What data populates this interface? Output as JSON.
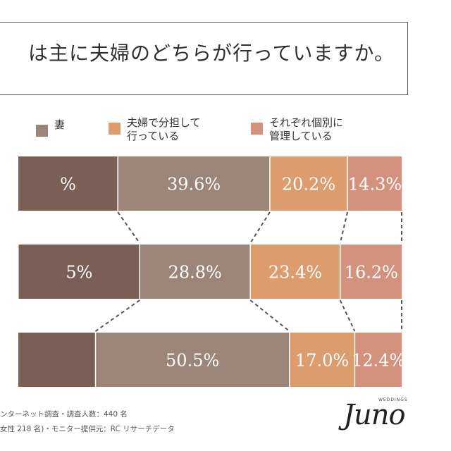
{
  "title": "は主に夫婦のどちらが行っていますか。",
  "legend": [
    {
      "label": "妻",
      "color": "#9c8576"
    },
    {
      "label": "夫婦で分担して\n行っている",
      "color": "#dd9c6e"
    },
    {
      "label": "それぞれ個別に\n管理している",
      "color": "#d3927e"
    }
  ],
  "chart_data": {
    "type": "bar",
    "orientation": "horizontal-stacked",
    "title": "は主に夫婦のどちらが行っていますか。",
    "series_colors": [
      "#7b5f55",
      "#9c8576",
      "#dd9c6e",
      "#d3927e"
    ],
    "rows": [
      {
        "segments": [
          {
            "label": "%",
            "value": 25.9
          },
          {
            "label": "39.6%",
            "value": 39.6
          },
          {
            "label": "20.2%",
            "value": 20.2
          },
          {
            "label": "14.3%",
            "value": 14.3
          }
        ]
      },
      {
        "segments": [
          {
            "label": "5%",
            "value": 31.5
          },
          {
            "label": "28.8%",
            "value": 28.8
          },
          {
            "label": "23.4%",
            "value": 23.4
          },
          {
            "label": "16.2%",
            "value": 16.2
          }
        ]
      },
      {
        "segments": [
          {
            "label": "",
            "value": 20.1
          },
          {
            "label": "50.5%",
            "value": 50.5
          },
          {
            "label": "17.0%",
            "value": 17.0
          },
          {
            "label": "12.4%",
            "value": 12.4
          }
        ]
      }
    ]
  },
  "footnotes": [
    "ンターネット調査・調査人数：440 名",
    "女性 218 名)・モニター提供元：RC リサーチデータ"
  ],
  "logo": {
    "main": "Juno",
    "sub": "WEDDINGS"
  }
}
